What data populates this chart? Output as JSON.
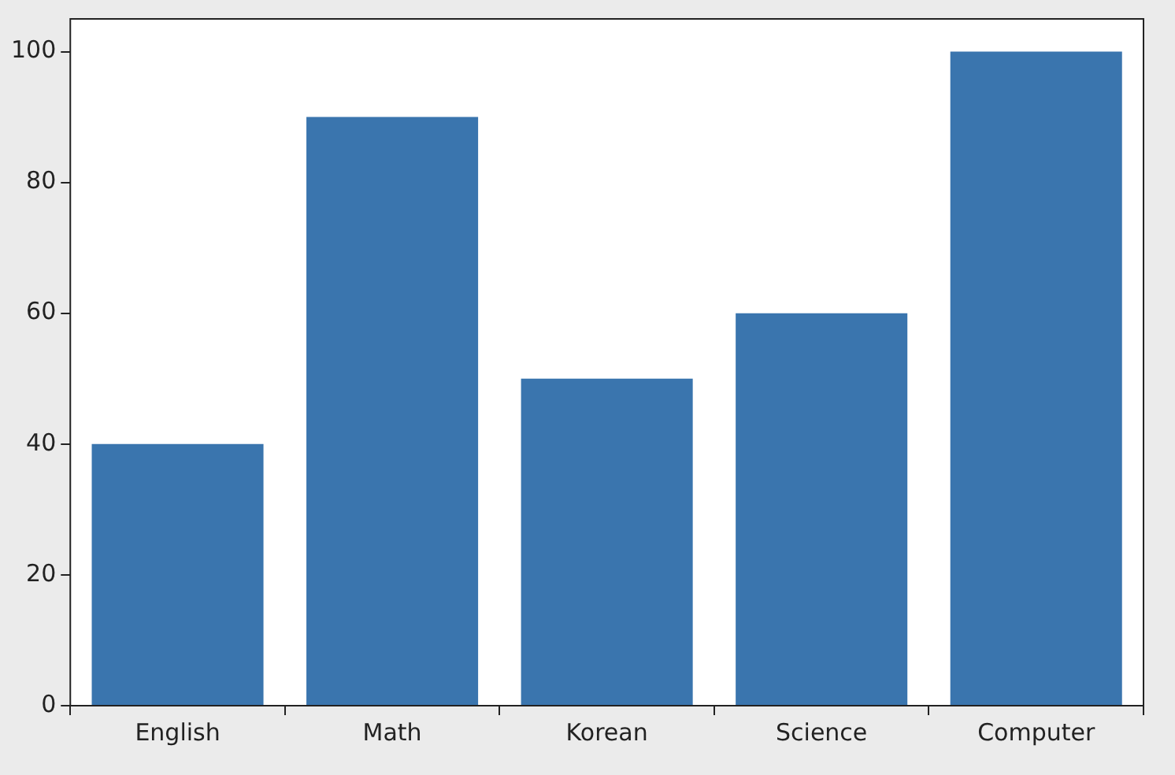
{
  "chart_data": {
    "type": "bar",
    "categories": [
      "English",
      "Math",
      "Korean",
      "Science",
      "Computer"
    ],
    "values": [
      40,
      90,
      50,
      60,
      100
    ],
    "color": "#3a75ae",
    "ylim": [
      0,
      105
    ],
    "yticks": [
      0,
      20,
      40,
      60,
      80,
      100
    ]
  }
}
